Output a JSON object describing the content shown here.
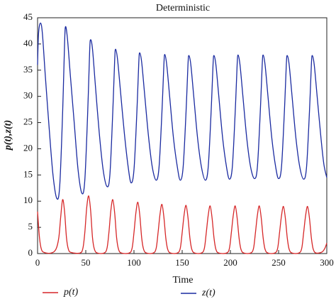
{
  "chart_data": {
    "type": "line",
    "title": "Deterministic",
    "xlabel": "Time",
    "ylabel": "p(t),z(t)",
    "xlim": [
      0,
      300
    ],
    "xticks": [
      0,
      50,
      100,
      150,
      200,
      250,
      300
    ],
    "ylim": [
      0,
      45
    ],
    "yticks": [
      0,
      5,
      10,
      15,
      20,
      25,
      30,
      35,
      40,
      45
    ],
    "series": [
      {
        "name": "p(t)",
        "color": "#d62728",
        "x": [
          0,
          2,
          4,
          7,
          14,
          19,
          22,
          24,
          26,
          28,
          30,
          32,
          35,
          44,
          47,
          49,
          51,
          53,
          55,
          57,
          59,
          62,
          69,
          72,
          74,
          76,
          78,
          80,
          82,
          84,
          87,
          95,
          98,
          100,
          102,
          104,
          106,
          108,
          110,
          113,
          120,
          123,
          125,
          127,
          129,
          131,
          133,
          135,
          138,
          145,
          148,
          150,
          152,
          154,
          156,
          158,
          160,
          163,
          170,
          173,
          175,
          177,
          179,
          181,
          183,
          185,
          188,
          196,
          199,
          201,
          203,
          205,
          207,
          209,
          211,
          214,
          221,
          224,
          226,
          228,
          230,
          232,
          234,
          236,
          239,
          246,
          249,
          251,
          253,
          255,
          257,
          259,
          261,
          264,
          271,
          274,
          276,
          278,
          280,
          282,
          284,
          286,
          289,
          295,
          298,
          300
        ],
        "values": [
          8,
          3,
          0.8,
          0.2,
          0.1,
          0.8,
          3,
          7,
          10.3,
          8,
          3,
          0.8,
          0.2,
          0.1,
          1,
          4,
          8.8,
          11,
          8.3,
          3,
          0.8,
          0.1,
          0.1,
          1,
          4,
          8.2,
          10.3,
          7.7,
          3,
          0.8,
          0.1,
          0.1,
          1,
          4,
          7.8,
          9.8,
          7.4,
          3,
          0.8,
          0.1,
          0.1,
          1,
          4,
          7.5,
          9.4,
          7,
          3,
          0.8,
          0.1,
          0.1,
          1,
          4,
          7.4,
          9.2,
          6.9,
          3,
          0.8,
          0.1,
          0.1,
          1,
          4,
          7.3,
          9.1,
          6.8,
          3,
          0.8,
          0.1,
          0.1,
          1,
          4,
          7.3,
          9.1,
          6.8,
          3,
          0.8,
          0.1,
          0.1,
          1,
          4,
          7.3,
          9.1,
          6.8,
          3,
          0.8,
          0.1,
          0.1,
          1,
          4,
          7.2,
          9,
          6.8,
          3,
          0.8,
          0.1,
          0.1,
          1,
          4,
          7.2,
          9,
          6.8,
          3,
          0.8,
          0.1,
          0.3,
          1,
          2
        ]
      },
      {
        "name": "z(t)",
        "color": "#1a2aa0",
        "x": [
          0,
          1,
          3,
          5,
          8,
          12,
          16,
          20,
          23,
          26,
          28,
          29,
          31,
          34,
          38,
          42,
          46,
          49,
          52,
          54,
          55,
          57,
          60,
          64,
          68,
          72,
          75,
          78,
          80,
          81,
          83,
          86,
          90,
          94,
          97,
          100,
          103,
          105,
          106,
          108,
          111,
          115,
          119,
          123,
          126,
          129,
          131,
          132,
          134,
          137,
          141,
          145,
          148,
          151,
          154,
          156,
          157,
          159,
          162,
          166,
          170,
          174,
          177,
          180,
          182,
          183,
          185,
          188,
          192,
          196,
          199,
          202,
          205,
          207,
          208,
          210,
          213,
          217,
          221,
          225,
          228,
          231,
          233,
          234,
          236,
          239,
          243,
          247,
          250,
          253,
          256,
          258,
          259,
          261,
          264,
          268,
          272,
          276,
          279,
          282,
          284,
          285,
          287,
          290,
          294,
          297,
          300
        ],
        "values": [
          36,
          42,
          44,
          42,
          34,
          24,
          15,
          10.5,
          13,
          27,
          40,
          43.3,
          41,
          34,
          25,
          16,
          11.5,
          14,
          27,
          38.5,
          40.8,
          39,
          32,
          23,
          16,
          12.8,
          15,
          27,
          37,
          39,
          37,
          31,
          23,
          16.5,
          13.5,
          16,
          27,
          36.5,
          38.3,
          36.5,
          30.5,
          22.5,
          16.5,
          14,
          16.5,
          27,
          36,
          38,
          36,
          30,
          22,
          16.5,
          14,
          16.5,
          27,
          36,
          37.8,
          36,
          30,
          22,
          16.5,
          14,
          16.5,
          27,
          36,
          37.8,
          36,
          30,
          22,
          16.5,
          14.2,
          16.5,
          27,
          36,
          37.9,
          36,
          30,
          22,
          16.5,
          14.3,
          16.5,
          27,
          36,
          37.9,
          36,
          30,
          22,
          16.5,
          14.3,
          16.5,
          27,
          36,
          37.8,
          36,
          30,
          22,
          16.5,
          14.2,
          16.5,
          27,
          36,
          37.8,
          36,
          30,
          22,
          17,
          14.5
        ]
      }
    ]
  }
}
